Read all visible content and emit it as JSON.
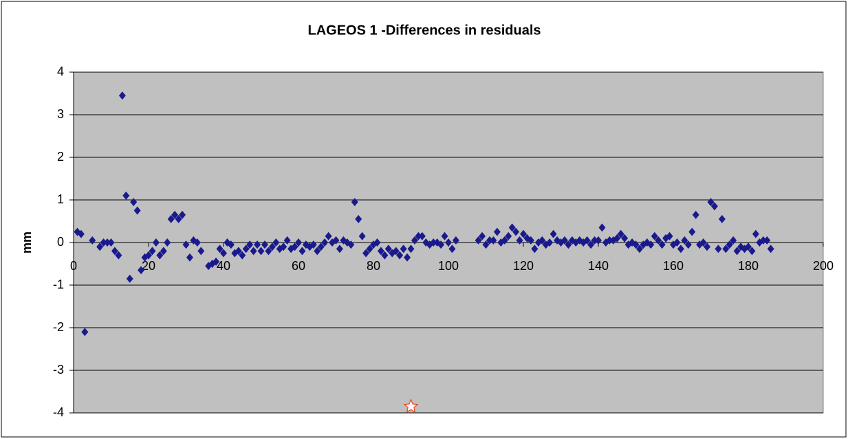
{
  "chart_data": {
    "type": "scatter",
    "title": "LAGEOS 1 -Differences in residuals",
    "y_label": "mm",
    "xlim": [
      0,
      200
    ],
    "xticks": [
      0,
      20,
      40,
      60,
      80,
      100,
      120,
      140,
      160,
      180,
      200
    ],
    "ylim": [
      -4,
      4
    ],
    "yticks": [
      -4,
      -3,
      -2,
      -1,
      0,
      1,
      2,
      3,
      4
    ],
    "grid": true,
    "series": [
      {
        "color": "#1a1a8c",
        "marker": "diamond",
        "x": [
          1,
          2,
          3,
          5,
          7,
          8,
          9,
          10,
          11,
          12,
          13,
          14,
          15,
          16,
          17,
          18,
          19,
          20,
          21,
          22,
          23,
          24,
          25,
          26,
          27,
          28,
          29,
          30,
          31,
          32,
          33,
          34,
          36,
          37,
          38,
          39,
          40,
          41,
          42,
          43,
          44,
          45,
          46,
          47,
          48,
          49,
          50,
          51,
          52,
          53,
          54,
          55,
          56,
          57,
          58,
          59,
          60,
          61,
          62,
          63,
          64,
          65,
          66,
          67,
          68,
          69,
          70,
          71,
          72,
          73,
          74,
          75,
          76,
          77,
          78,
          79,
          80,
          81,
          82,
          83,
          84,
          85,
          86,
          87,
          88,
          89,
          90,
          91,
          92,
          93,
          94,
          95,
          96,
          97,
          98,
          99,
          100,
          101,
          102,
          108,
          109,
          110,
          111,
          112,
          113,
          114,
          115,
          116,
          117,
          118,
          119,
          120,
          121,
          122,
          123,
          124,
          125,
          126,
          127,
          128,
          129,
          130,
          131,
          132,
          133,
          134,
          135,
          136,
          137,
          138,
          139,
          140,
          141,
          142,
          143,
          144,
          145,
          146,
          147,
          148,
          149,
          150,
          151,
          152,
          153,
          154,
          155,
          156,
          157,
          158,
          159,
          160,
          161,
          162,
          163,
          164,
          165,
          166,
          167,
          168,
          169,
          170,
          171,
          172,
          173,
          174,
          175,
          176,
          177,
          178,
          179,
          180,
          181,
          182,
          183,
          184,
          185,
          186
        ],
        "values": [
          0.25,
          0.2,
          -2.1,
          0.05,
          -0.1,
          0,
          0,
          0,
          -0.2,
          -0.3,
          3.45,
          1.1,
          -0.85,
          0.95,
          0.75,
          -0.65,
          -0.35,
          -0.3,
          -0.2,
          0,
          -0.3,
          -0.2,
          0,
          0.55,
          0.65,
          0.55,
          0.65,
          -0.05,
          -0.35,
          0.05,
          0,
          -0.2,
          -0.55,
          -0.5,
          -0.45,
          -0.15,
          -0.25,
          0,
          -0.05,
          -0.25,
          -0.2,
          -0.3,
          -0.15,
          -0.05,
          -0.2,
          -0.05,
          -0.2,
          -0.05,
          -0.2,
          -0.1,
          0,
          -0.15,
          -0.1,
          0.05,
          -0.15,
          -0.1,
          0,
          -0.2,
          -0.05,
          -0.1,
          -0.05,
          -0.2,
          -0.1,
          0,
          0.15,
          0,
          0.05,
          -0.15,
          0.05,
          0,
          -0.05,
          0.95,
          0.55,
          0.15,
          -0.25,
          -0.15,
          -0.05,
          0,
          -0.2,
          -0.3,
          -0.15,
          -0.25,
          -0.2,
          -0.3,
          -0.15,
          -0.35,
          -0.15,
          0.05,
          0.15,
          0.15,
          0,
          -0.05,
          0,
          0,
          -0.05,
          0.15,
          0,
          -0.15,
          0.05,
          0.05,
          0.15,
          -0.05,
          0.05,
          0.05,
          0.25,
          0,
          0.05,
          0.15,
          0.35,
          0.25,
          0.05,
          0.2,
          0.1,
          0.05,
          -0.15,
          0,
          0.05,
          -0.05,
          0,
          0.2,
          0.05,
          0,
          0.05,
          -0.05,
          0.05,
          0,
          0.05,
          0,
          0.05,
          -0.05,
          0.05,
          0.05,
          0.35,
          0,
          0.05,
          0.05,
          0.1,
          0.2,
          0.1,
          -0.05,
          0,
          -0.05,
          -0.15,
          -0.05,
          0,
          -0.05,
          0.15,
          0.05,
          -0.05,
          0.1,
          0.15,
          -0.05,
          0,
          -0.15,
          0.05,
          -0.05,
          0.25,
          0.65,
          -0.05,
          0,
          -0.1,
          0.95,
          0.85,
          -0.15,
          0.55,
          -0.15,
          -0.05,
          0.05,
          -0.2,
          -0.1,
          -0.15,
          -0.1,
          -0.2,
          0.2,
          0,
          0.05,
          0.05,
          -0.15
        ]
      },
      {
        "color": "#e8401c",
        "marker": "star",
        "x": [
          90
        ],
        "values": [
          -3.85
        ]
      }
    ]
  }
}
